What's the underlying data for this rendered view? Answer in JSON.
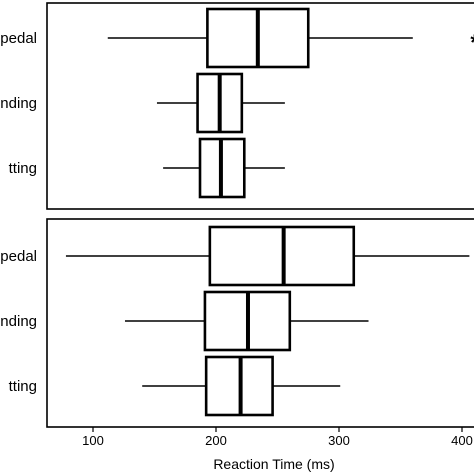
{
  "chart_data": {
    "type": "boxplot",
    "xlabel": "Reaction Time (ms)",
    "xlim": [
      60,
      410
    ],
    "xticks": [
      100,
      200,
      300,
      400
    ],
    "xtick_labels": [
      "100",
      "200",
      "300",
      "400"
    ],
    "grid": false,
    "panels": [
      {
        "categories": [
          "bipedal",
          "standing",
          "sitting"
        ],
        "category_labels": [
          "pedal",
          "nding",
          "tting"
        ],
        "boxes": [
          {
            "whisker_low": 112,
            "q1": 193,
            "median": 234,
            "q3": 275,
            "whisker_high": 360,
            "outliers": [
              {
                "value": 368,
                "marker": "*"
              }
            ]
          },
          {
            "whisker_low": 152,
            "q1": 185,
            "median": 203,
            "q3": 221,
            "whisker_high": 256,
            "outliers": []
          },
          {
            "whisker_low": 157,
            "q1": 187,
            "median": 204,
            "q3": 223,
            "whisker_high": 256,
            "outliers": []
          }
        ]
      },
      {
        "categories": [
          "bipedal",
          "standing",
          "sitting"
        ],
        "category_labels": [
          "pedal",
          "nding",
          "tting"
        ],
        "boxes": [
          {
            "whisker_low": 78,
            "q1": 195,
            "median": 255,
            "q3": 312,
            "whisker_high": 406,
            "outliers": []
          },
          {
            "whisker_low": 126,
            "q1": 191,
            "median": 226,
            "q3": 260,
            "whisker_high": 324,
            "outliers": []
          },
          {
            "whisker_low": 140,
            "q1": 192,
            "median": 220,
            "q3": 246,
            "whisker_high": 301,
            "outliers": []
          }
        ]
      }
    ]
  }
}
